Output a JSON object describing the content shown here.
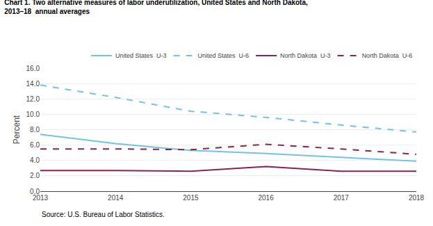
{
  "chart_data": {
    "type": "line",
    "title": "Chart 1. Two alternative measures of labor underutilization, United States and North Dakota,",
    "subtitle": "2013–18  annual averages",
    "x": [
      2013,
      2014,
      2015,
      2016,
      2017,
      2018
    ],
    "series": [
      {
        "name": "United States  U-3",
        "color": "#72c2e8",
        "line_style": "solid",
        "values": [
          7.4,
          6.2,
          5.3,
          4.9,
          4.4,
          3.9
        ]
      },
      {
        "name": "United States  U-6",
        "color": "#72c2e8",
        "line_style": "dashed",
        "values": [
          13.8,
          12.2,
          10.4,
          9.6,
          8.6,
          7.7
        ]
      },
      {
        "name": "North Dakota  U-3",
        "color": "#8b2252",
        "line_style": "solid",
        "values": [
          2.7,
          2.7,
          2.6,
          3.2,
          2.6,
          2.6
        ]
      },
      {
        "name": "North Dakota  U-6",
        "color": "#8b2252",
        "line_style": "dashed",
        "values": [
          5.5,
          5.5,
          5.4,
          6.1,
          5.5,
          4.8
        ]
      }
    ],
    "xlim": [
      2013,
      2018
    ],
    "xticks": [
      2013,
      2014,
      2015,
      2016,
      2017,
      2018
    ],
    "ylabel": "Percent",
    "ylim": [
      0.0,
      16.0
    ],
    "yticks": [
      {
        "value": 0.0,
        "label": "0.0"
      },
      {
        "value": 2.0,
        "label": "2.0"
      },
      {
        "value": 4.0,
        "label": "4.0"
      },
      {
        "value": 6.0,
        "label": "6.0"
      },
      {
        "value": 8.0,
        "label": "8.0"
      },
      {
        "value": 10.0,
        "label": "10.0"
      },
      {
        "value": 12.0,
        "label": "12.0"
      },
      {
        "value": 14.0,
        "label": "14.0"
      },
      {
        "value": 16.0,
        "label": "16.0"
      }
    ],
    "grid": "y",
    "legend": "upper right",
    "annotations": [
      "Source: U.S. Bureau of Labor Statistics."
    ]
  }
}
